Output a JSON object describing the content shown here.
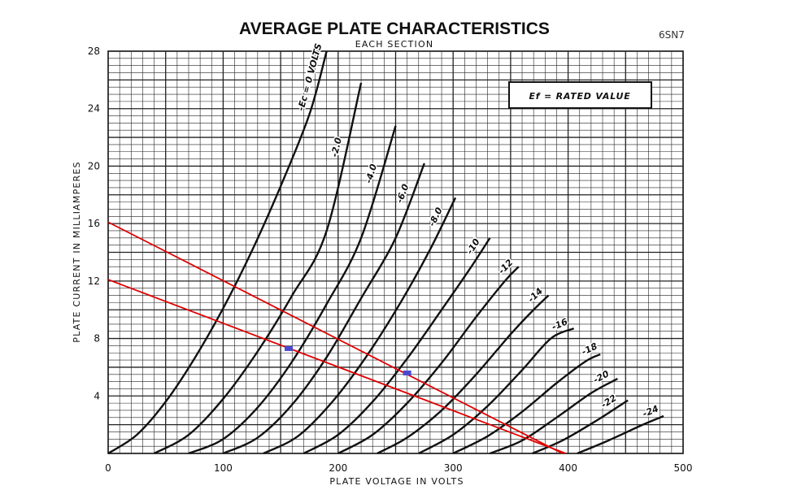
{
  "tube_id": "6SN7",
  "chart_data": {
    "type": "line",
    "title": "AVERAGE PLATE CHARACTERISTICS",
    "subtitle": "EACH SECTION",
    "xlabel": "PLATE VOLTAGE IN VOLTS",
    "ylabel": "PLATE CURRENT IN MILLIAMPERES",
    "xlim": [
      0,
      500
    ],
    "ylim": [
      0,
      28
    ],
    "x_ticks": [
      0,
      100,
      200,
      300,
      400,
      500
    ],
    "y_ticks": [
      4,
      8,
      12,
      16,
      20,
      24,
      28
    ],
    "grid": true,
    "annotation_box": "Ef = RATED VALUE",
    "curve_color": "#111111",
    "series": [
      {
        "name": "-Ec = 0 VOLTS",
        "x": [
          0,
          25,
          50,
          75,
          100,
          125,
          150,
          175,
          190
        ],
        "y": [
          0,
          1.3,
          3.6,
          6.6,
          10.1,
          14.1,
          18.6,
          23.6,
          28
        ]
      },
      {
        "name": "-2.0",
        "x": [
          40,
          70,
          100,
          130,
          160,
          190,
          220
        ],
        "y": [
          0,
          1.3,
          3.8,
          7.1,
          11.0,
          15.5,
          25.8
        ]
      },
      {
        "name": "-4.0",
        "x": [
          70,
          100,
          130,
          160,
          190,
          220,
          250
        ],
        "y": [
          0,
          1.0,
          3.2,
          6.4,
          10.4,
          15.0,
          22.8
        ]
      },
      {
        "name": "-6.0",
        "x": [
          100,
          130,
          160,
          190,
          220,
          250,
          275
        ],
        "y": [
          0,
          1.1,
          3.4,
          6.7,
          10.8,
          15.0,
          20.2
        ]
      },
      {
        "name": "-8.0",
        "x": [
          135,
          165,
          195,
          225,
          255,
          280,
          302
        ],
        "y": [
          0,
          1.2,
          3.6,
          6.8,
          10.6,
          14.2,
          17.8
        ]
      },
      {
        "name": "-10",
        "x": [
          170,
          200,
          230,
          260,
          290,
          315,
          332
        ],
        "y": [
          0,
          1.3,
          3.6,
          6.6,
          10.0,
          12.9,
          15.0
        ]
      },
      {
        "name": "-12",
        "x": [
          200,
          230,
          260,
          290,
          320,
          345,
          357
        ],
        "y": [
          0,
          1.3,
          3.5,
          6.3,
          9.5,
          12.0,
          13.0
        ]
      },
      {
        "name": "-14",
        "x": [
          234,
          260,
          290,
          320,
          350,
          370,
          383
        ],
        "y": [
          0,
          1.1,
          3.0,
          5.5,
          8.3,
          10.0,
          11.0
        ]
      },
      {
        "name": "-16",
        "x": [
          270,
          300,
          330,
          360,
          385,
          405
        ],
        "y": [
          0,
          1.3,
          3.3,
          5.8,
          8.0,
          8.7
        ]
      },
      {
        "name": "-18",
        "x": [
          300,
          330,
          360,
          390,
          415,
          428
        ],
        "y": [
          0,
          1.2,
          2.9,
          4.9,
          6.4,
          6.9
        ]
      },
      {
        "name": "-20",
        "x": [
          332,
          360,
          390,
          420,
          443
        ],
        "y": [
          0,
          0.9,
          2.5,
          4.2,
          5.2
        ]
      },
      {
        "name": "-22",
        "x": [
          369,
          395,
          425,
          452
        ],
        "y": [
          0,
          0.9,
          2.3,
          3.7
        ]
      },
      {
        "name": "-24",
        "x": [
          408,
          435,
          465,
          483
        ],
        "y": [
          0,
          0.9,
          2.0,
          2.6
        ]
      }
    ],
    "load_lines": [
      {
        "color": "#e00000",
        "x": [
          0,
          395
        ],
        "y": [
          16.1,
          0
        ]
      },
      {
        "color": "#e00000",
        "x": [
          0,
          398
        ],
        "y": [
          12.1,
          0
        ]
      }
    ],
    "operating_points": [
      {
        "color": "#4a4ad0",
        "x": 157,
        "y": 7.3
      },
      {
        "color": "#4a4ad0",
        "x": 260,
        "y": 5.6
      }
    ]
  }
}
